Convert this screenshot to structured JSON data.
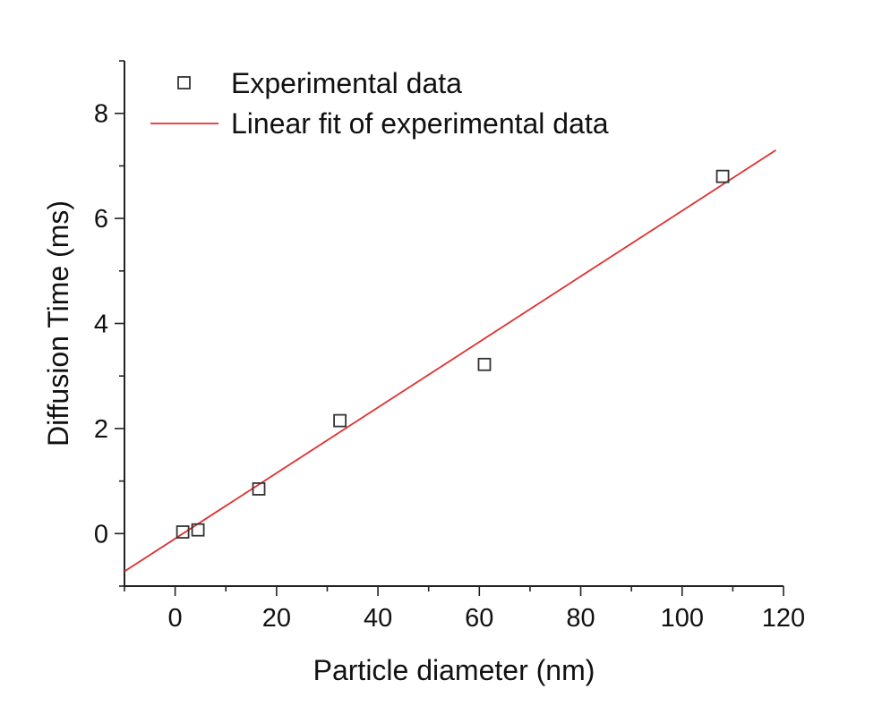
{
  "chart_data": {
    "type": "scatter",
    "xlabel": "Particle diameter (nm)",
    "ylabel": "Diffusion Time (ms)",
    "xlim": [
      -10,
      120
    ],
    "ylim": [
      -1,
      9
    ],
    "x_ticks": [
      0,
      20,
      40,
      60,
      80,
      100,
      120
    ],
    "y_ticks": [
      0,
      2,
      4,
      6,
      8
    ],
    "legend_position": "top-left",
    "series": [
      {
        "name": "Experimental data",
        "kind": "scatter",
        "marker": "open-square",
        "color": "#333333",
        "x": [
          1.5,
          4.5,
          16.5,
          32.5,
          61,
          108
        ],
        "y": [
          0.03,
          0.07,
          0.85,
          2.15,
          3.22,
          6.8
        ]
      },
      {
        "name": "Linear fit of experimental data",
        "kind": "line",
        "color": "#e03030",
        "x": [
          -10,
          118.5
        ],
        "y": [
          -0.72,
          7.3
        ]
      }
    ]
  }
}
